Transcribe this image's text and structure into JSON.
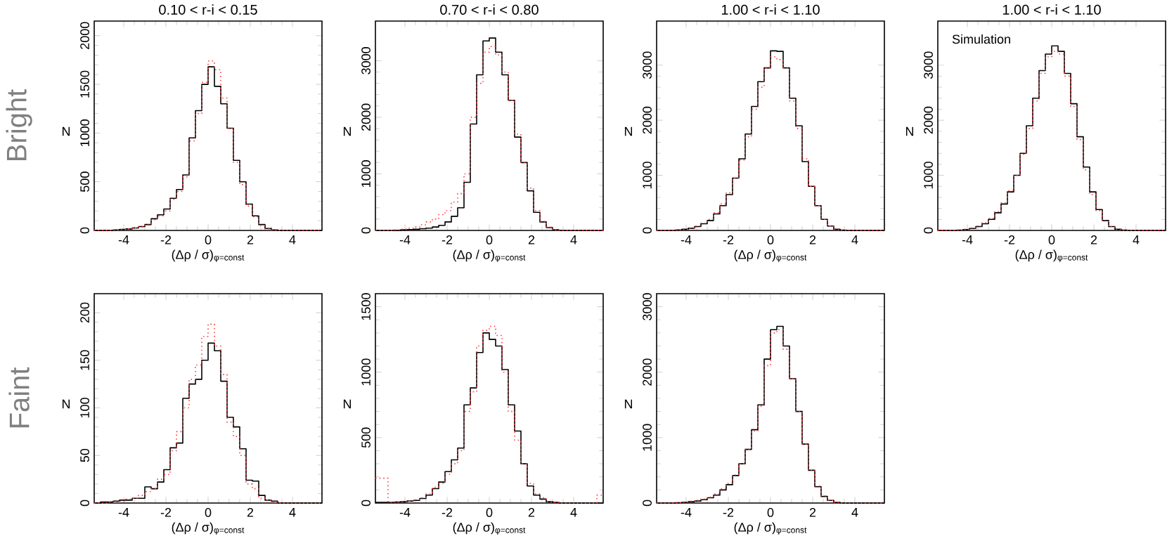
{
  "chart_data": [
    {
      "type": "histogram",
      "title": "0.10 < r-i < 0.15",
      "xlabel": "(Δρ / σ)$_{φ=const}$",
      "ylabel": "N",
      "annotations": [
        "Bright"
      ],
      "xlim": [
        -5.4,
        5.4
      ],
      "ylim": [
        0,
        2150
      ],
      "xticks": [
        -4,
        -2,
        0,
        2,
        4
      ],
      "yticks": [
        0,
        500,
        1000,
        1500,
        2000
      ],
      "bins": [
        -5.4,
        -5.1,
        -4.8,
        -4.5,
        -4.2,
        -3.9,
        -3.6,
        -3.3,
        -3.0,
        -2.7,
        -2.4,
        -2.1,
        -1.8,
        -1.5,
        -1.2,
        -0.9,
        -0.6,
        -0.3,
        0,
        0.3,
        0.6,
        0.9,
        1.2,
        1.5,
        1.8,
        2.1,
        2.4,
        2.7,
        3.0,
        3.3,
        3.6,
        3.9,
        4.2,
        4.5,
        4.8,
        5.1,
        5.4
      ],
      "series": [
        {
          "color": "#000000",
          "line_style": "solid",
          "values": [
            0,
            0,
            0,
            5,
            10,
            15,
            25,
            40,
            60,
            120,
            160,
            220,
            330,
            420,
            570,
            950,
            1230,
            1500,
            1680,
            1480,
            1300,
            1050,
            720,
            500,
            270,
            150,
            60,
            20,
            5,
            0,
            0,
            0,
            0,
            0,
            0,
            0
          ]
        },
        {
          "color": "#ff4040",
          "line_style": "dotted",
          "values": [
            0,
            0,
            0,
            5,
            10,
            15,
            25,
            35,
            55,
            110,
            150,
            200,
            320,
            400,
            550,
            920,
            1200,
            1520,
            1740,
            1650,
            1360,
            1050,
            700,
            470,
            250,
            140,
            50,
            15,
            5,
            0,
            0,
            0,
            0,
            0,
            0,
            0
          ]
        }
      ]
    },
    {
      "type": "histogram",
      "title": "0.70 < r-i < 0.80",
      "xlabel": "(Δρ / σ)$_{φ=const}$",
      "ylabel": "N",
      "xlim": [
        -5.4,
        5.4
      ],
      "ylim": [
        0,
        3700
      ],
      "xticks": [
        -4,
        -2,
        0,
        2,
        4
      ],
      "yticks": [
        0,
        1000,
        2000,
        3000
      ],
      "bins": [
        -5.4,
        -5.1,
        -4.8,
        -4.5,
        -4.2,
        -3.9,
        -3.6,
        -3.3,
        -3.0,
        -2.7,
        -2.4,
        -2.1,
        -1.8,
        -1.5,
        -1.2,
        -0.9,
        -0.6,
        -0.3,
        0,
        0.3,
        0.6,
        0.9,
        1.2,
        1.5,
        1.8,
        2.1,
        2.4,
        2.7,
        3.0,
        3.3,
        3.6,
        3.9,
        4.2,
        4.5,
        4.8,
        5.1,
        5.4
      ],
      "series": [
        {
          "color": "#000000",
          "line_style": "solid",
          "values": [
            0,
            0,
            0,
            0,
            10,
            15,
            20,
            30,
            40,
            60,
            90,
            150,
            250,
            400,
            850,
            1880,
            2750,
            3350,
            3400,
            3150,
            2750,
            2300,
            1650,
            1200,
            700,
            320,
            150,
            50,
            10,
            0,
            0,
            0,
            0,
            0,
            0,
            0
          ]
        },
        {
          "color": "#ff4040",
          "line_style": "dotted",
          "values": [
            0,
            0,
            0,
            10,
            20,
            40,
            60,
            100,
            150,
            200,
            280,
            350,
            500,
            650,
            1000,
            2000,
            2600,
            3150,
            3250,
            3100,
            2800,
            2300,
            1700,
            1200,
            750,
            350,
            160,
            60,
            10,
            0,
            0,
            0,
            0,
            0,
            0,
            0
          ]
        }
      ]
    },
    {
      "type": "histogram",
      "title": "1.00 < r-i < 1.10",
      "xlabel": "(Δρ / σ)$_{φ=const}$",
      "ylabel": "N",
      "xlim": [
        -5.4,
        5.4
      ],
      "ylim": [
        0,
        3800
      ],
      "xticks": [
        -4,
        -2,
        0,
        2,
        4
      ],
      "yticks": [
        0,
        1000,
        2000,
        3000
      ],
      "bins": [
        -5.4,
        -5.1,
        -4.8,
        -4.5,
        -4.2,
        -3.9,
        -3.6,
        -3.3,
        -3.0,
        -2.7,
        -2.4,
        -2.1,
        -1.8,
        -1.5,
        -1.2,
        -0.9,
        -0.6,
        -0.3,
        0,
        0.3,
        0.6,
        0.9,
        1.2,
        1.5,
        1.8,
        2.1,
        2.4,
        2.7,
        3.0,
        3.3,
        3.6,
        3.9,
        4.2,
        4.5,
        4.8,
        5.1,
        5.4
      ],
      "series": [
        {
          "color": "#000000",
          "line_style": "solid",
          "values": [
            0,
            0,
            0,
            10,
            20,
            40,
            70,
            120,
            180,
            300,
            450,
            650,
            950,
            1300,
            1750,
            2250,
            2700,
            2950,
            3260,
            3250,
            2950,
            2400,
            1900,
            1250,
            800,
            450,
            200,
            80,
            20,
            5,
            0,
            0,
            0,
            0,
            0,
            0
          ]
        },
        {
          "color": "#ff4040",
          "line_style": "dotted",
          "values": [
            0,
            0,
            0,
            10,
            20,
            45,
            80,
            130,
            200,
            320,
            480,
            680,
            950,
            1280,
            1700,
            2200,
            2600,
            2950,
            3150,
            3100,
            2950,
            2350,
            1850,
            1300,
            800,
            450,
            200,
            80,
            20,
            5,
            0,
            0,
            0,
            0,
            0,
            0
          ]
        }
      ]
    },
    {
      "type": "histogram",
      "title": "1.00 < r-i < 1.10",
      "xlabel": "(Δρ / σ)$_{φ=const}$",
      "ylabel": "N",
      "annotations": [
        "Simulation"
      ],
      "xlim": [
        -5.4,
        5.4
      ],
      "ylim": [
        0,
        3800
      ],
      "xticks": [
        -4,
        -2,
        0,
        2,
        4
      ],
      "yticks": [
        0,
        1000,
        2000,
        3000
      ],
      "bins": [
        -5.4,
        -5.1,
        -4.8,
        -4.5,
        -4.2,
        -3.9,
        -3.6,
        -3.3,
        -3.0,
        -2.7,
        -2.4,
        -2.1,
        -1.8,
        -1.5,
        -1.2,
        -0.9,
        -0.6,
        -0.3,
        0,
        0.3,
        0.6,
        0.9,
        1.2,
        1.5,
        1.8,
        2.1,
        2.4,
        2.7,
        3.0,
        3.3,
        3.6,
        3.9,
        4.2,
        4.5,
        4.8,
        5.1,
        5.4
      ],
      "series": [
        {
          "color": "#000000",
          "line_style": "solid",
          "values": [
            0,
            0,
            0,
            5,
            15,
            35,
            70,
            120,
            200,
            320,
            480,
            700,
            1000,
            1400,
            1900,
            2400,
            2900,
            3200,
            3350,
            3250,
            2850,
            2300,
            1700,
            1150,
            700,
            380,
            180,
            70,
            20,
            5,
            0,
            0,
            0,
            0,
            0,
            0
          ]
        },
        {
          "color": "#ff4040",
          "line_style": "dotted",
          "values": [
            0,
            0,
            0,
            5,
            20,
            45,
            80,
            140,
            220,
            340,
            500,
            720,
            1000,
            1380,
            1850,
            2350,
            2850,
            3150,
            3250,
            3200,
            2800,
            2250,
            1650,
            1100,
            650,
            360,
            170,
            70,
            20,
            5,
            0,
            0,
            0,
            0,
            0,
            0
          ]
        }
      ]
    },
    {
      "type": "histogram",
      "xlabel": "(Δρ / σ)$_{φ=const}$",
      "ylabel": "N",
      "annotations": [
        "Faint"
      ],
      "xlim": [
        -5.4,
        5.4
      ],
      "ylim": [
        0,
        220
      ],
      "xticks": [
        -4,
        -2,
        0,
        2,
        4
      ],
      "yticks": [
        0,
        50,
        100,
        150,
        200
      ],
      "bins": [
        -5.4,
        -5.1,
        -4.8,
        -4.5,
        -4.2,
        -3.9,
        -3.6,
        -3.3,
        -3.0,
        -2.7,
        -2.4,
        -2.1,
        -1.8,
        -1.5,
        -1.2,
        -0.9,
        -0.6,
        -0.3,
        0,
        0.3,
        0.6,
        0.9,
        1.2,
        1.5,
        1.8,
        2.1,
        2.4,
        2.7,
        3.0,
        3.3,
        3.6,
        3.9,
        4.2,
        4.5,
        4.8,
        5.1,
        5.4
      ],
      "series": [
        {
          "color": "#000000",
          "line_style": "solid",
          "values": [
            0,
            1,
            1,
            2,
            3,
            3,
            5,
            5,
            17,
            15,
            22,
            35,
            58,
            63,
            110,
            125,
            130,
            150,
            168,
            160,
            128,
            90,
            80,
            57,
            24,
            23,
            8,
            3,
            2,
            0,
            0,
            0,
            0,
            0,
            0,
            0
          ]
        },
        {
          "color": "#ff4040",
          "line_style": "dotted",
          "values": [
            0,
            0,
            1,
            1,
            2,
            4,
            5,
            8,
            12,
            15,
            25,
            30,
            55,
            75,
            100,
            130,
            145,
            175,
            188,
            165,
            135,
            85,
            70,
            50,
            20,
            15,
            5,
            3,
            1,
            0,
            0,
            0,
            0,
            0,
            0,
            0
          ]
        }
      ]
    },
    {
      "type": "histogram",
      "xlabel": "(Δρ / σ)$_{φ=const}$",
      "ylabel": "N",
      "xlim": [
        -5.4,
        5.4
      ],
      "ylim": [
        0,
        1600
      ],
      "xticks": [
        -4,
        -2,
        0,
        2,
        4
      ],
      "yticks": [
        0,
        500,
        1000,
        1500
      ],
      "bins": [
        -5.4,
        -5.1,
        -4.8,
        -4.5,
        -4.2,
        -3.9,
        -3.6,
        -3.3,
        -3.0,
        -2.7,
        -2.4,
        -2.1,
        -1.8,
        -1.5,
        -1.2,
        -0.9,
        -0.6,
        -0.3,
        0,
        0.3,
        0.6,
        0.9,
        1.2,
        1.5,
        1.8,
        2.1,
        2.4,
        2.7,
        3.0,
        3.3,
        3.6,
        3.9,
        4.2,
        4.5,
        4.8,
        5.1,
        5.4
      ],
      "series": [
        {
          "color": "#000000",
          "line_style": "solid",
          "values": [
            5,
            5,
            5,
            8,
            10,
            15,
            20,
            35,
            60,
            110,
            160,
            240,
            330,
            420,
            750,
            880,
            1150,
            1300,
            1250,
            1200,
            1020,
            750,
            550,
            300,
            130,
            60,
            30,
            10,
            5,
            0,
            0,
            0,
            0,
            0,
            0,
            0
          ]
        },
        {
          "color": "#ff4040",
          "line_style": "dotted",
          "values": [
            190,
            190,
            5,
            8,
            10,
            15,
            25,
            40,
            70,
            120,
            150,
            220,
            300,
            400,
            700,
            850,
            1200,
            1320,
            1350,
            1280,
            1000,
            700,
            480,
            300,
            150,
            70,
            40,
            10,
            5,
            0,
            0,
            0,
            0,
            0,
            0,
            60
          ]
        }
      ]
    },
    {
      "type": "histogram",
      "xlabel": "(Δρ / σ)$_{φ=const}$",
      "ylabel": "N",
      "xlim": [
        -5.4,
        5.4
      ],
      "ylim": [
        0,
        3200
      ],
      "xticks": [
        -4,
        -2,
        0,
        2,
        4
      ],
      "yticks": [
        0,
        1000,
        2000,
        3000
      ],
      "bins": [
        -5.4,
        -5.1,
        -4.8,
        -4.5,
        -4.2,
        -3.9,
        -3.6,
        -3.3,
        -3.0,
        -2.7,
        -2.4,
        -2.1,
        -1.8,
        -1.5,
        -1.2,
        -0.9,
        -0.6,
        -0.3,
        0,
        0.3,
        0.6,
        0.9,
        1.2,
        1.5,
        1.8,
        2.1,
        2.4,
        2.7,
        3.0,
        3.3,
        3.6,
        3.9,
        4.2,
        4.5,
        4.8,
        5.1,
        5.4
      ],
      "series": [
        {
          "color": "#000000",
          "line_style": "solid",
          "values": [
            0,
            0,
            0,
            5,
            10,
            20,
            30,
            50,
            80,
            120,
            200,
            280,
            420,
            600,
            820,
            1120,
            1500,
            2200,
            2650,
            2700,
            2400,
            1900,
            1400,
            900,
            500,
            250,
            100,
            40,
            10,
            0,
            0,
            0,
            0,
            0,
            0,
            0
          ]
        },
        {
          "color": "#ff4040",
          "line_style": "dotted",
          "values": [
            0,
            0,
            0,
            5,
            15,
            25,
            40,
            60,
            90,
            140,
            220,
            300,
            430,
            600,
            820,
            1100,
            1480,
            2100,
            2600,
            2650,
            2350,
            1900,
            1400,
            900,
            500,
            260,
            110,
            40,
            10,
            0,
            0,
            0,
            0,
            0,
            0,
            0
          ]
        }
      ]
    }
  ]
}
